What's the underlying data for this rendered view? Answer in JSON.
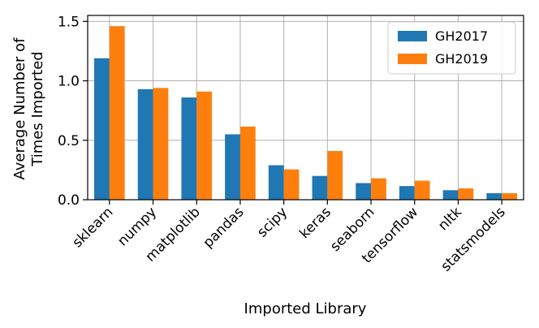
{
  "chart_data": {
    "type": "bar",
    "xlabel": "Imported Library",
    "ylabel_lines": [
      "Average Number of",
      "Times Imported"
    ],
    "categories": [
      "sklearn",
      "numpy",
      "matplotlib",
      "pandas",
      "scipy",
      "keras",
      "seaborn",
      "tensorflow",
      "nltk",
      "statsmodels"
    ],
    "series": [
      {
        "name": "GH2017",
        "color": "#1f77b4",
        "values": [
          1.19,
          0.93,
          0.86,
          0.55,
          0.29,
          0.2,
          0.14,
          0.115,
          0.08,
          0.055
        ]
      },
      {
        "name": "GH2019",
        "color": "#ff7f0e",
        "values": [
          1.46,
          0.94,
          0.91,
          0.615,
          0.255,
          0.41,
          0.18,
          0.16,
          0.095,
          0.055
        ]
      }
    ],
    "ylim": [
      0,
      1.55
    ],
    "yticks": [
      "0.0",
      "0.5",
      "1.0",
      "1.5"
    ],
    "ytick_values": [
      0,
      0.5,
      1.0,
      1.5
    ],
    "grid": true,
    "legend_position": "top-right"
  }
}
